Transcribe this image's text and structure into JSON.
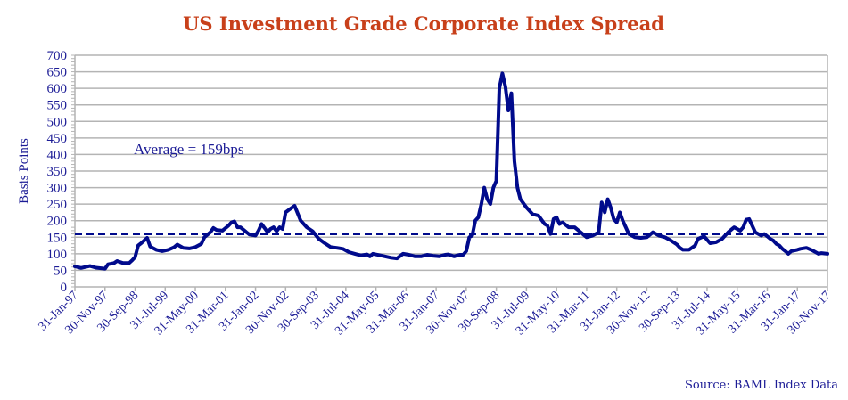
{
  "chart_data": {
    "type": "line",
    "title": "US Investment Grade Corporate Index Spread",
    "xlabel": "",
    "ylabel": "Basis Points",
    "ylim": [
      0,
      700
    ],
    "y_ticks": [
      0,
      50,
      100,
      150,
      200,
      250,
      300,
      350,
      400,
      450,
      500,
      550,
      600,
      650,
      700
    ],
    "grid": true,
    "x_unit": "months since 31-Jan-97",
    "xlim": [
      0,
      250
    ],
    "x_tick_months": [
      0,
      10,
      20,
      30,
      40,
      50,
      60,
      70,
      80,
      90,
      100,
      110,
      120,
      130,
      140,
      150,
      160,
      170,
      180,
      190,
      200,
      210,
      220,
      230,
      240,
      250
    ],
    "x_tick_labels": [
      "31-Jan-97",
      "30-Nov-97",
      "30-Sep-98",
      "31-Jul-99",
      "31-May-00",
      "31-Mar-01",
      "31-Jan-02",
      "30-Nov-02",
      "30-Sep-03",
      "31-Jul-04",
      "31-May-05",
      "31-Mar-06",
      "31-Jan-07",
      "30-Nov-07",
      "30-Sep-08",
      "31-Jul-09",
      "31-May-10",
      "31-Mar-11",
      "31-Jan-12",
      "30-Nov-12",
      "30-Sep-13",
      "31-Jul-14",
      "31-May-15",
      "31-Mar-16",
      "31-Jan-17",
      "30-Nov-17"
    ],
    "series": [
      {
        "name": "Spread",
        "color": "#000a8c",
        "x": [
          0,
          2,
          5,
          7,
          9,
          10,
          11,
          13,
          14,
          16,
          18,
          19,
          20,
          21,
          22,
          24,
          25,
          27,
          29,
          31,
          33,
          34,
          36,
          38,
          40,
          42,
          43,
          45,
          46,
          47,
          49,
          51,
          52,
          53,
          54,
          55,
          57,
          58,
          60,
          61,
          62,
          63,
          64,
          65,
          66,
          67,
          68,
          69,
          70,
          71,
          73,
          75,
          77,
          79,
          81,
          83,
          85,
          87,
          89,
          91,
          93,
          95,
          97,
          98,
          99,
          101,
          103,
          105,
          107,
          109,
          111,
          113,
          115,
          117,
          119,
          121,
          123,
          124,
          125,
          126,
          127,
          128,
          129,
          130,
          131,
          132,
          133,
          134,
          135,
          136,
          137,
          138,
          139,
          140,
          141,
          142,
          143,
          144,
          145,
          146,
          147,
          148,
          150,
          152,
          154,
          156,
          157,
          158,
          159,
          160,
          161,
          162,
          164,
          166,
          168,
          170,
          172,
          174,
          175,
          176,
          177,
          178,
          179,
          180,
          181,
          182,
          183,
          184,
          185,
          186,
          188,
          190,
          192,
          194,
          196,
          198,
          200,
          201,
          202,
          204,
          206,
          207,
          209,
          211,
          213,
          215,
          217,
          219,
          221,
          222,
          223,
          224,
          226,
          228,
          229,
          231,
          232,
          233,
          234,
          235,
          236,
          237,
          238,
          240,
          241,
          243,
          245,
          246,
          247,
          248,
          249,
          250
        ],
        "values": [
          62,
          57,
          63,
          58,
          56,
          55,
          68,
          72,
          78,
          72,
          72,
          80,
          90,
          125,
          132,
          148,
          122,
          112,
          108,
          112,
          120,
          128,
          118,
          116,
          120,
          130,
          150,
          165,
          178,
          172,
          170,
          185,
          195,
          198,
          180,
          180,
          165,
          158,
          155,
          170,
          190,
          178,
          165,
          175,
          180,
          168,
          180,
          175,
          225,
          232,
          245,
          200,
          180,
          168,
          145,
          132,
          120,
          118,
          115,
          105,
          100,
          95,
          98,
          92,
          100,
          96,
          92,
          88,
          86,
          100,
          97,
          92,
          92,
          97,
          94,
          92,
          97,
          98,
          95,
          92,
          95,
          97,
          97,
          108,
          150,
          155,
          200,
          210,
          250,
          300,
          265,
          250,
          300,
          320,
          600,
          645,
          605,
          533,
          585,
          380,
          300,
          265,
          240,
          220,
          215,
          190,
          185,
          160,
          205,
          210,
          190,
          195,
          180,
          180,
          165,
          150,
          155,
          165,
          255,
          225,
          265,
          240,
          205,
          195,
          225,
          200,
          180,
          160,
          155,
          150,
          148,
          150,
          165,
          155,
          150,
          140,
          128,
          118,
          112,
          112,
          125,
          145,
          153,
          132,
          135,
          145,
          165,
          180,
          170,
          180,
          203,
          205,
          165,
          155,
          160,
          145,
          140,
          130,
          125,
          115,
          108,
          100,
          108,
          112,
          115,
          118,
          110,
          105,
          100,
          102,
          101,
          100
        ]
      }
    ],
    "reference_line": {
      "value": 159,
      "style": "dashed",
      "color": "#000a8c"
    },
    "annotations": [
      {
        "text": "Average = 159bps"
      }
    ],
    "source": "Source: BAML Index Data",
    "colors": {
      "title": "#c8401a",
      "text": "#1c1c96",
      "grid": "#b4b4b4",
      "line": "#000a8c"
    }
  }
}
